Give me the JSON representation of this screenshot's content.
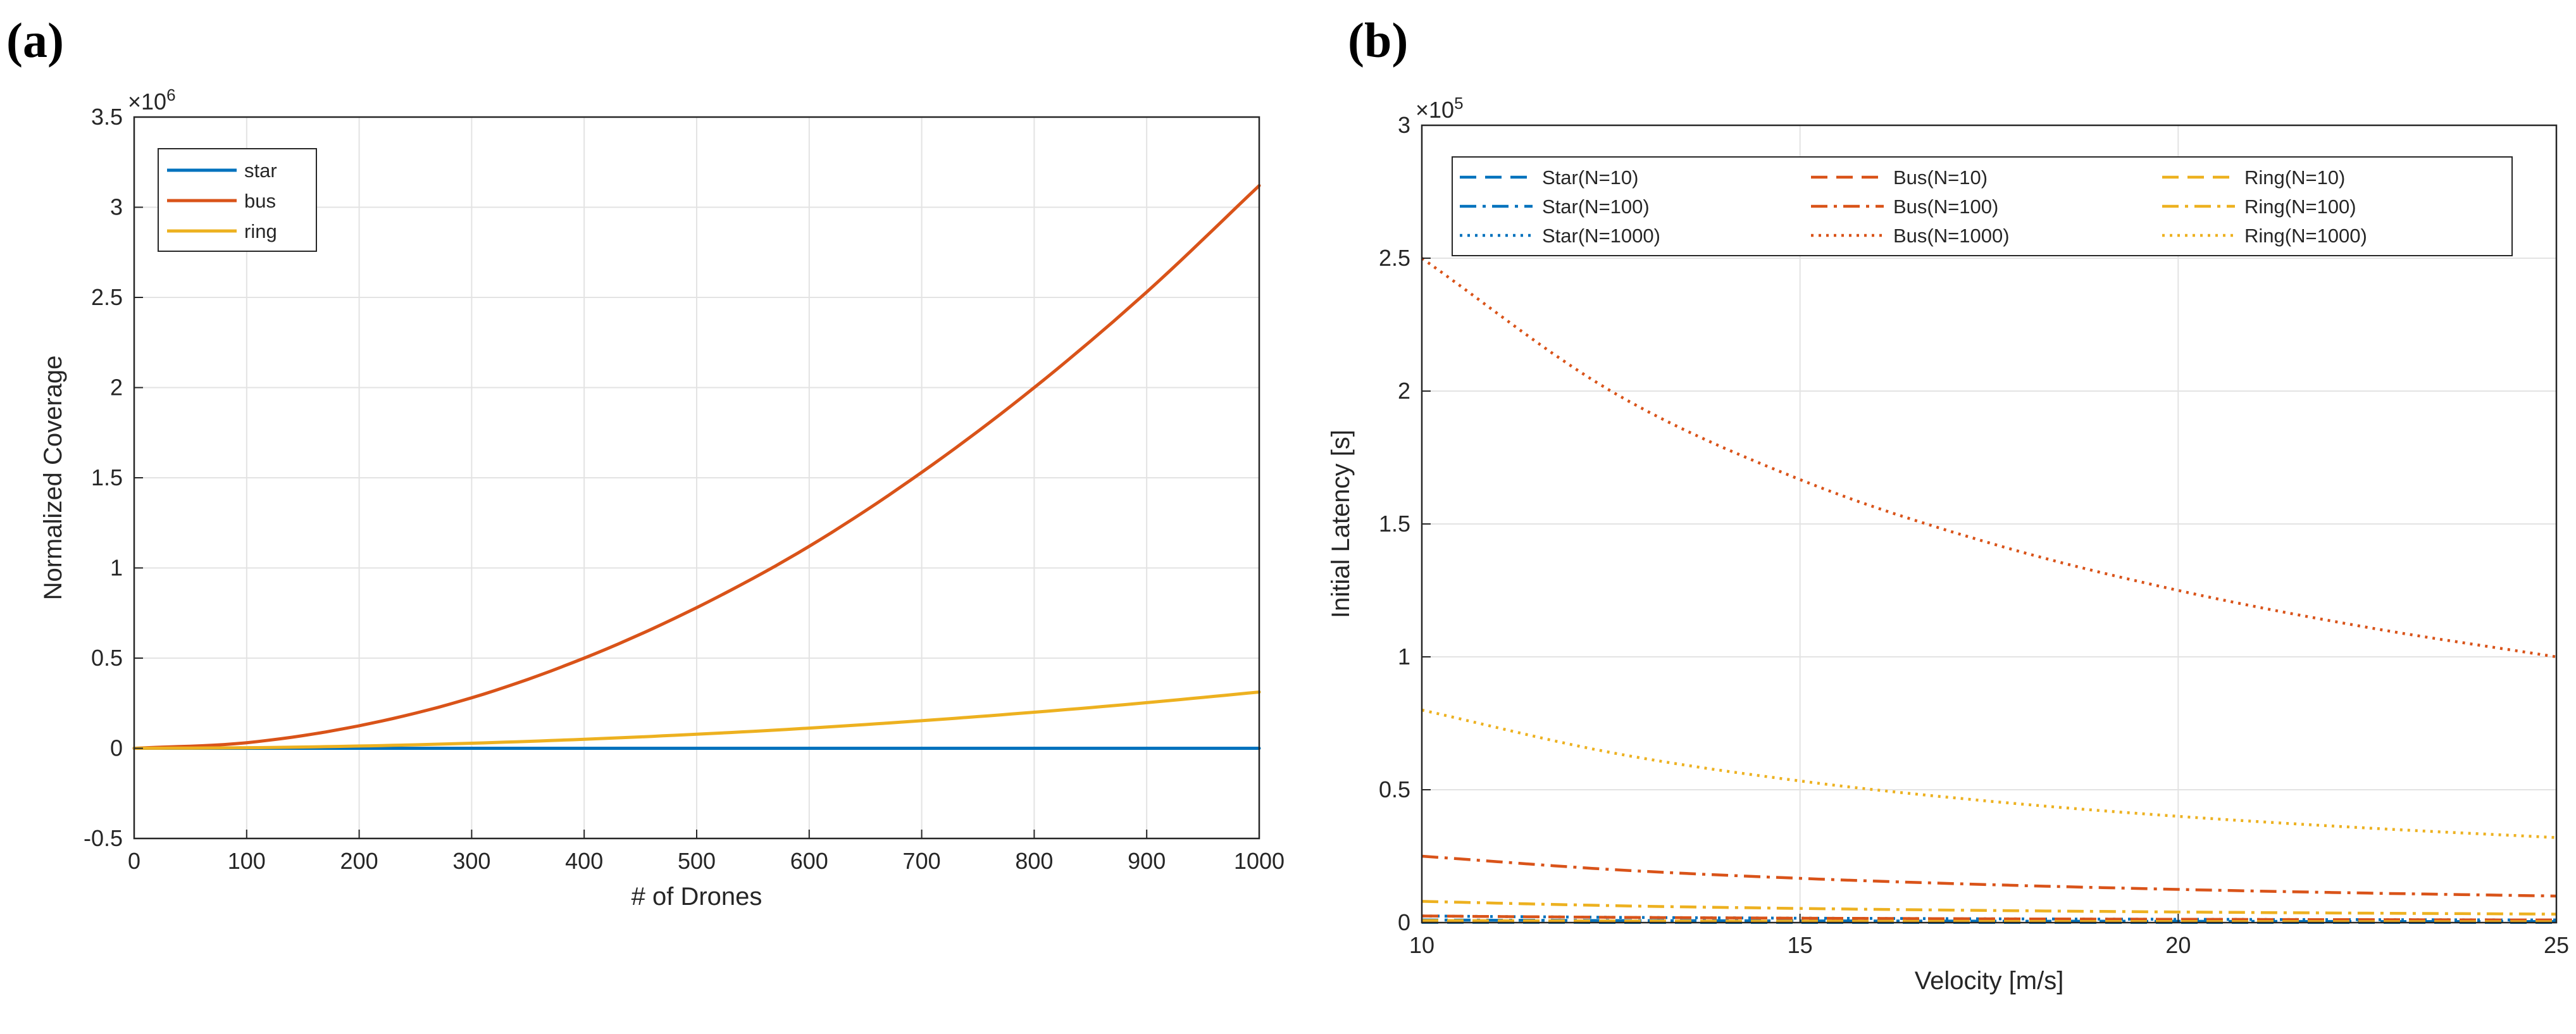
{
  "chart_data": [
    {
      "panel_label": "(a)",
      "type": "line",
      "xlabel": "# of Drones",
      "ylabel": "Normalized Coverage",
      "xlim": [
        0,
        1000
      ],
      "ylim": [
        -0.5,
        3.5
      ],
      "x_ticks": [
        "0",
        "100",
        "200",
        "300",
        "400",
        "500",
        "600",
        "700",
        "800",
        "900",
        "1000"
      ],
      "y_ticks": [
        "-0.5",
        "0",
        "0.5",
        "1",
        "1.5",
        "2",
        "2.5",
        "3",
        "3.5"
      ],
      "y_exponent_label": "×10",
      "y_exponent_power": "6",
      "y_scale_note": "values in units of 10^6",
      "grid": true,
      "legend_position": "top-left",
      "series": [
        {
          "name": "star",
          "color": "#0072BD",
          "style": "solid",
          "x": [
            0,
            100,
            200,
            300,
            400,
            500,
            600,
            700,
            800,
            900,
            1000
          ],
          "y": [
            0,
            0,
            0,
            0,
            0,
            0,
            0,
            0,
            0,
            0,
            0
          ]
        },
        {
          "name": "bus",
          "color": "#D95319",
          "style": "solid",
          "x": [
            0,
            100,
            200,
            300,
            400,
            500,
            600,
            700,
            800,
            900,
            1000
          ],
          "y": [
            0,
            0.031,
            0.125,
            0.28,
            0.5,
            0.78,
            1.12,
            1.53,
            2.0,
            2.53,
            3.12
          ]
        },
        {
          "name": "ring",
          "color": "#EDB120",
          "style": "solid",
          "x": [
            0,
            100,
            200,
            300,
            400,
            500,
            600,
            700,
            800,
            900,
            1000
          ],
          "y": [
            0,
            0.003,
            0.0125,
            0.028,
            0.05,
            0.078,
            0.112,
            0.153,
            0.2,
            0.253,
            0.312
          ]
        }
      ]
    },
    {
      "panel_label": "(b)",
      "type": "line",
      "xlabel": "Velocity [m/s]",
      "ylabel": "Initial Latency [s]",
      "xlim": [
        10,
        25
      ],
      "ylim": [
        0,
        3
      ],
      "x_ticks": [
        "10",
        "15",
        "20",
        "25"
      ],
      "y_ticks": [
        "0",
        "0.5",
        "1",
        "1.5",
        "2",
        "2.5",
        "3"
      ],
      "y_exponent_label": "×10",
      "y_exponent_power": "5",
      "y_scale_note": "values in units of 10^5",
      "grid": true,
      "legend_position": "top-right",
      "legend_columns": 3,
      "series": [
        {
          "name": "Star(N=10)",
          "color": "#0072BD",
          "style": "dashed",
          "x": [
            10,
            12.5,
            15,
            17.5,
            20,
            22.5,
            25
          ],
          "y": [
            0.001,
            0.0008,
            0.0007,
            0.0006,
            0.0005,
            0.0004,
            0.0004
          ]
        },
        {
          "name": "Star(N=100)",
          "color": "#0072BD",
          "style": "dashdot",
          "x": [
            10,
            12.5,
            15,
            17.5,
            20,
            22.5,
            25
          ],
          "y": [
            0.01,
            0.008,
            0.0067,
            0.0057,
            0.005,
            0.0044,
            0.004
          ]
        },
        {
          "name": "Star(N=1000)",
          "color": "#0072BD",
          "style": "dotted",
          "x": [
            10,
            12.5,
            15,
            17.5,
            20,
            22.5,
            25
          ],
          "y": [
            0.025,
            0.02,
            0.0167,
            0.0143,
            0.0125,
            0.0111,
            0.01
          ]
        },
        {
          "name": "Bus(N=10)",
          "color": "#D95319",
          "style": "dashed",
          "x": [
            10,
            12.5,
            15,
            17.5,
            20,
            22.5,
            25
          ],
          "y": [
            0.025,
            0.02,
            0.0167,
            0.0143,
            0.0125,
            0.0111,
            0.01
          ]
        },
        {
          "name": "Bus(N=100)",
          "color": "#D95319",
          "style": "dashdot",
          "x": [
            10,
            12.5,
            15,
            17.5,
            20,
            22.5,
            25
          ],
          "y": [
            0.25,
            0.2,
            0.1667,
            0.1429,
            0.125,
            0.1111,
            0.1
          ]
        },
        {
          "name": "Bus(N=1000)",
          "color": "#D95319",
          "style": "dotted",
          "x": [
            10,
            12.5,
            15,
            17.5,
            20,
            22.5,
            25
          ],
          "y": [
            2.5,
            2.0,
            1.667,
            1.429,
            1.25,
            1.111,
            1.0
          ]
        },
        {
          "name": "Ring(N=10)",
          "color": "#EDB120",
          "style": "dashed",
          "x": [
            10,
            12.5,
            15,
            17.5,
            20,
            22.5,
            25
          ],
          "y": [
            0.008,
            0.0064,
            0.0053,
            0.0046,
            0.004,
            0.0036,
            0.0032
          ]
        },
        {
          "name": "Ring(N=100)",
          "color": "#EDB120",
          "style": "dashdot",
          "x": [
            10,
            12.5,
            15,
            17.5,
            20,
            22.5,
            25
          ],
          "y": [
            0.08,
            0.064,
            0.0533,
            0.0457,
            0.04,
            0.0356,
            0.032
          ]
        },
        {
          "name": "Ring(N=1000)",
          "color": "#EDB120",
          "style": "dotted",
          "x": [
            10,
            12.5,
            15,
            17.5,
            20,
            22.5,
            25
          ],
          "y": [
            0.8,
            0.64,
            0.533,
            0.457,
            0.4,
            0.356,
            0.32
          ]
        }
      ]
    }
  ]
}
